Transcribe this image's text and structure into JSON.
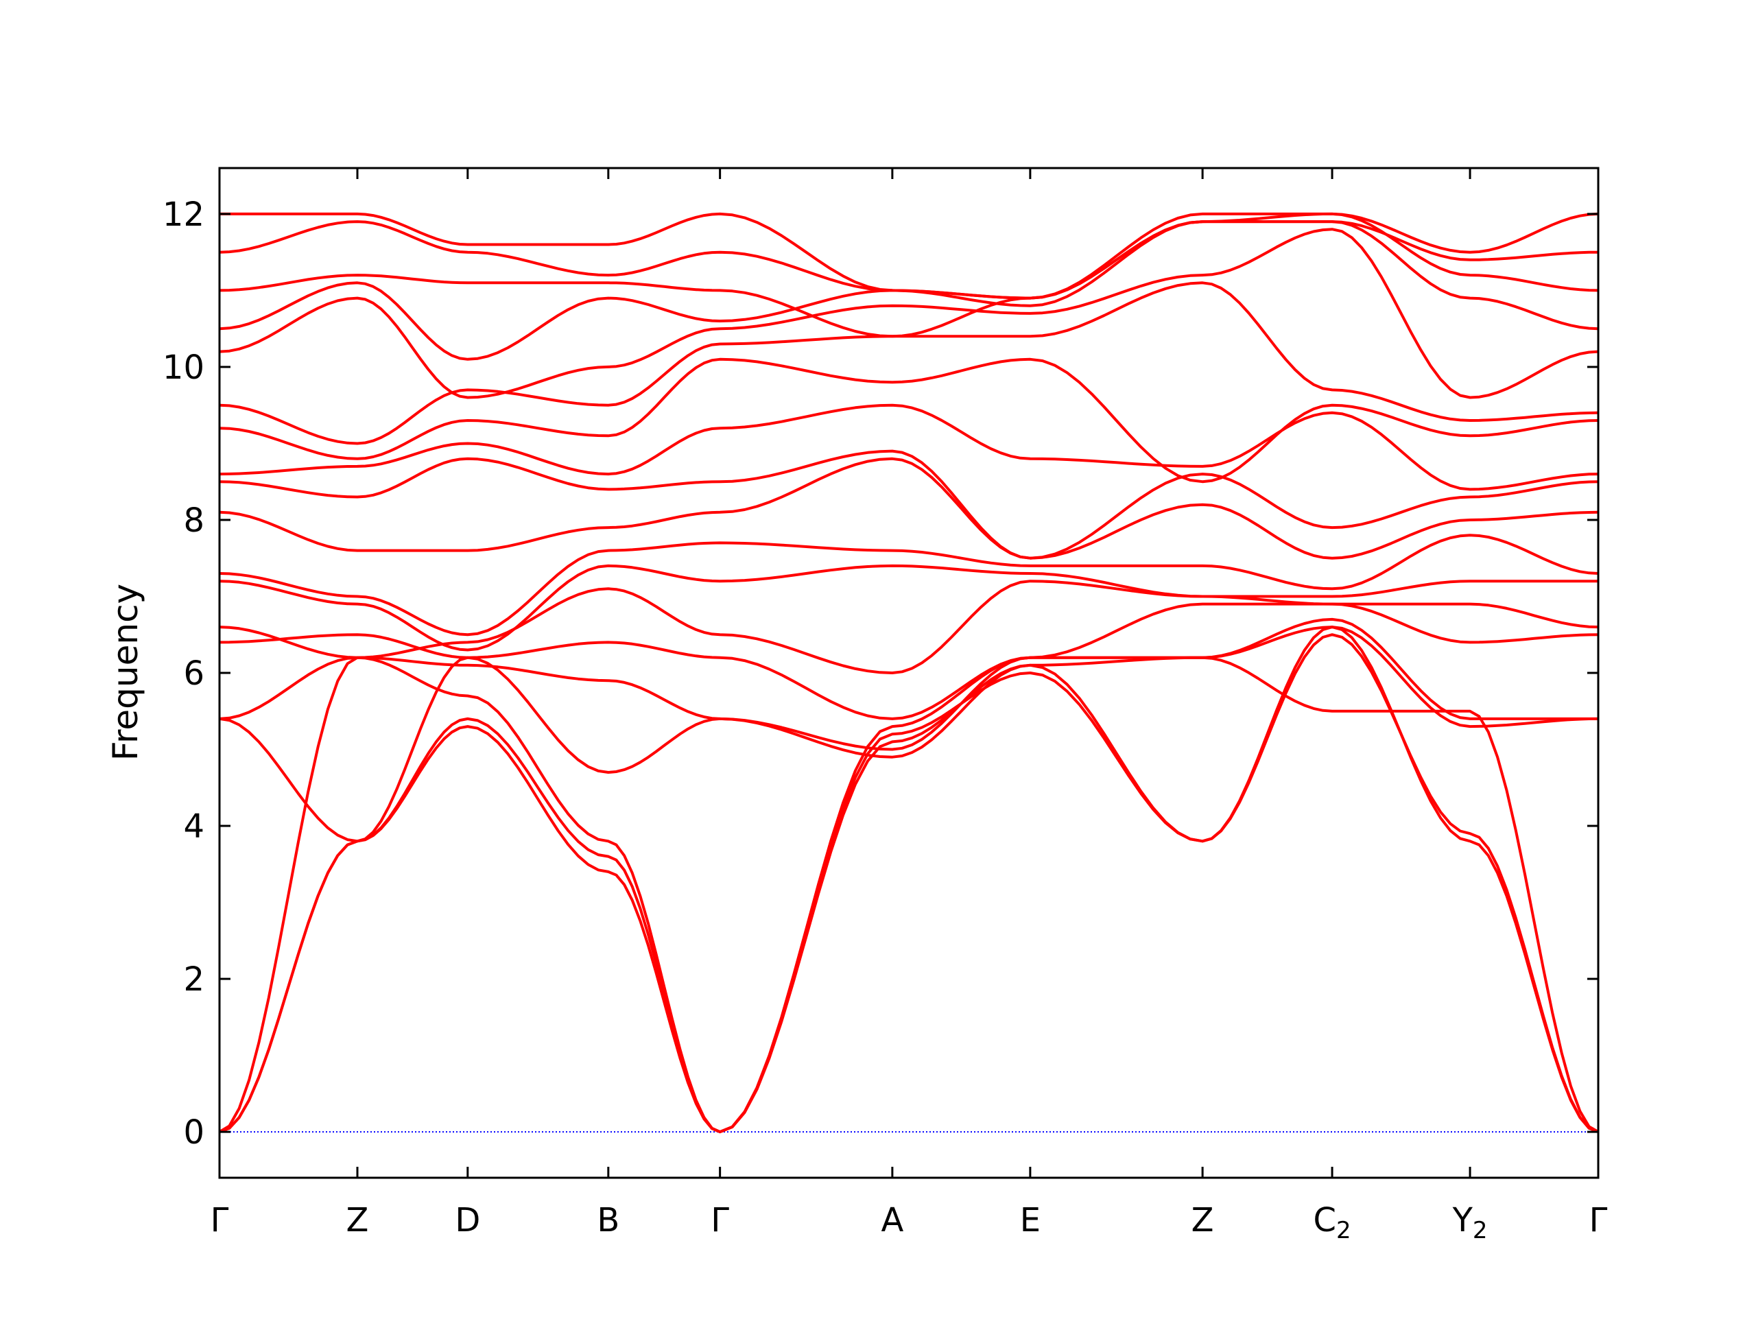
{
  "chart_data": {
    "type": "line",
    "title": "",
    "xlabel": "",
    "ylabel": "Frequency",
    "ylim": [
      -0.6,
      12.6
    ],
    "yticks": [
      0,
      2,
      4,
      6,
      8,
      10,
      12
    ],
    "grid": false,
    "legend": "none",
    "x_range": [
      0,
      10
    ],
    "x_ticks": [
      {
        "pos": 0.0,
        "label": "Γ",
        "sub": ""
      },
      {
        "pos": 1.0,
        "label": "Z",
        "sub": ""
      },
      {
        "pos": 1.8,
        "label": "D",
        "sub": ""
      },
      {
        "pos": 2.82,
        "label": "B",
        "sub": ""
      },
      {
        "pos": 3.63,
        "label": "Γ",
        "sub": ""
      },
      {
        "pos": 4.88,
        "label": "A",
        "sub": ""
      },
      {
        "pos": 5.88,
        "label": "E",
        "sub": ""
      },
      {
        "pos": 7.13,
        "label": "Z",
        "sub": ""
      },
      {
        "pos": 8.07,
        "label": "C",
        "sub": "2"
      },
      {
        "pos": 9.07,
        "label": "Y",
        "sub": "2"
      },
      {
        "pos": 10.0,
        "label": "Γ",
        "sub": ""
      }
    ],
    "line_color": "#ff0000",
    "zero_line_color": "#0000ff",
    "points_per_segment": 14,
    "bands": [
      [
        [
          0,
          0
        ],
        [
          1,
          3.8
        ],
        [
          1.8,
          5.3
        ],
        [
          2.82,
          3.4
        ],
        [
          3.63,
          0
        ],
        [
          4.88,
          5.1
        ],
        [
          5.88,
          6.1
        ],
        [
          7.13,
          3.8
        ],
        [
          8.07,
          6.6
        ],
        [
          9.07,
          3.8
        ],
        [
          10,
          0
        ]
      ],
      [
        [
          0,
          0
        ],
        [
          1,
          3.8
        ],
        [
          1.8,
          5.4
        ],
        [
          2.82,
          3.6
        ],
        [
          3.63,
          0
        ],
        [
          4.88,
          5.2
        ],
        [
          5.88,
          6.0
        ],
        [
          7.13,
          3.8
        ],
        [
          8.07,
          6.5
        ],
        [
          9.07,
          3.9
        ],
        [
          10,
          0
        ]
      ],
      [
        [
          0,
          0
        ],
        [
          1,
          6.2
        ],
        [
          1.8,
          5.7
        ],
        [
          2.82,
          3.8
        ],
        [
          3.63,
          0
        ],
        [
          4.88,
          5.3
        ],
        [
          5.88,
          6.2
        ],
        [
          7.13,
          6.2
        ],
        [
          8.07,
          5.5
        ],
        [
          9.07,
          5.5
        ],
        [
          10,
          0
        ]
      ],
      [
        [
          0,
          5.4
        ],
        [
          1,
          3.8
        ],
        [
          1.8,
          6.2
        ],
        [
          2.82,
          4.7
        ],
        [
          3.63,
          5.4
        ],
        [
          4.88,
          4.9
        ],
        [
          5.88,
          6.1
        ],
        [
          7.13,
          6.2
        ],
        [
          8.07,
          6.6
        ],
        [
          9.07,
          5.3
        ],
        [
          10,
          5.4
        ]
      ],
      [
        [
          0,
          5.4
        ],
        [
          1,
          6.2
        ],
        [
          1.8,
          6.1
        ],
        [
          2.82,
          5.9
        ],
        [
          3.63,
          5.4
        ],
        [
          4.88,
          5.0
        ],
        [
          5.88,
          6.2
        ],
        [
          7.13,
          6.2
        ],
        [
          8.07,
          6.7
        ],
        [
          9.07,
          5.4
        ],
        [
          10,
          5.4
        ]
      ],
      [
        [
          0,
          6.4
        ],
        [
          1,
          6.5
        ],
        [
          1.8,
          6.2
        ],
        [
          2.82,
          6.4
        ],
        [
          3.63,
          6.2
        ],
        [
          4.88,
          5.4
        ],
        [
          5.88,
          6.2
        ],
        [
          7.13,
          6.9
        ],
        [
          8.07,
          6.9
        ],
        [
          9.07,
          6.4
        ],
        [
          10,
          6.5
        ]
      ],
      [
        [
          0,
          6.6
        ],
        [
          1,
          6.2
        ],
        [
          1.8,
          6.4
        ],
        [
          2.82,
          7.1
        ],
        [
          3.63,
          6.5
        ],
        [
          4.88,
          6.0
        ],
        [
          5.88,
          7.2
        ],
        [
          7.13,
          7.0
        ],
        [
          8.07,
          6.9
        ],
        [
          9.07,
          6.9
        ],
        [
          10,
          6.6
        ]
      ],
      [
        [
          0,
          7.2
        ],
        [
          1,
          6.9
        ],
        [
          1.8,
          6.3
        ],
        [
          2.82,
          7.4
        ],
        [
          3.63,
          7.2
        ],
        [
          4.88,
          7.4
        ],
        [
          5.88,
          7.3
        ],
        [
          7.13,
          7.0
        ],
        [
          8.07,
          7.0
        ],
        [
          9.07,
          7.2
        ],
        [
          10,
          7.2
        ]
      ],
      [
        [
          0,
          7.3
        ],
        [
          1,
          7.0
        ],
        [
          1.8,
          6.5
        ],
        [
          2.82,
          7.6
        ],
        [
          3.63,
          7.7
        ],
        [
          4.88,
          7.6
        ],
        [
          5.88,
          7.4
        ],
        [
          7.13,
          7.4
        ],
        [
          8.07,
          7.1
        ],
        [
          9.07,
          7.8
        ],
        [
          10,
          7.3
        ]
      ],
      [
        [
          0,
          8.1
        ],
        [
          1,
          7.6
        ],
        [
          1.8,
          7.6
        ],
        [
          2.82,
          7.9
        ],
        [
          3.63,
          8.1
        ],
        [
          4.88,
          8.8
        ],
        [
          5.88,
          7.5
        ],
        [
          7.13,
          8.2
        ],
        [
          8.07,
          7.5
        ],
        [
          9.07,
          8.0
        ],
        [
          10,
          8.1
        ]
      ],
      [
        [
          0,
          8.5
        ],
        [
          1,
          8.3
        ],
        [
          1.8,
          8.8
        ],
        [
          2.82,
          8.4
        ],
        [
          3.63,
          8.5
        ],
        [
          4.88,
          8.9
        ],
        [
          5.88,
          7.5
        ],
        [
          7.13,
          8.6
        ],
        [
          8.07,
          7.9
        ],
        [
          9.07,
          8.3
        ],
        [
          10,
          8.5
        ]
      ],
      [
        [
          0,
          8.6
        ],
        [
          1,
          8.7
        ],
        [
          1.8,
          9.0
        ],
        [
          2.82,
          8.6
        ],
        [
          3.63,
          9.2
        ],
        [
          4.88,
          9.5
        ],
        [
          5.88,
          8.8
        ],
        [
          7.13,
          8.7
        ],
        [
          8.07,
          9.4
        ],
        [
          9.07,
          8.4
        ],
        [
          10,
          8.6
        ]
      ],
      [
        [
          0,
          9.2
        ],
        [
          1,
          8.8
        ],
        [
          1.8,
          9.3
        ],
        [
          2.82,
          9.1
        ],
        [
          3.63,
          10.1
        ],
        [
          4.88,
          9.8
        ],
        [
          5.88,
          10.1
        ],
        [
          7.13,
          8.5
        ],
        [
          8.07,
          9.5
        ],
        [
          9.07,
          9.1
        ],
        [
          10,
          9.3
        ]
      ],
      [
        [
          0,
          9.5
        ],
        [
          1,
          9.0
        ],
        [
          1.8,
          9.7
        ],
        [
          2.82,
          9.5
        ],
        [
          3.63,
          10.3
        ],
        [
          4.88,
          10.4
        ],
        [
          5.88,
          10.4
        ],
        [
          7.13,
          11.1
        ],
        [
          8.07,
          9.7
        ],
        [
          9.07,
          9.3
        ],
        [
          10,
          9.4
        ]
      ],
      [
        [
          0,
          10.2
        ],
        [
          1,
          10.9
        ],
        [
          1.8,
          9.6
        ],
        [
          2.82,
          10.0
        ],
        [
          3.63,
          10.5
        ],
        [
          4.88,
          10.8
        ],
        [
          5.88,
          10.7
        ],
        [
          7.13,
          11.2
        ],
        [
          8.07,
          11.8
        ],
        [
          9.07,
          9.6
        ],
        [
          10,
          10.2
        ]
      ],
      [
        [
          0,
          10.5
        ],
        [
          1,
          11.1
        ],
        [
          1.8,
          10.1
        ],
        [
          2.82,
          10.9
        ],
        [
          3.63,
          10.6
        ],
        [
          4.88,
          11.0
        ],
        [
          5.88,
          10.8
        ],
        [
          7.13,
          11.9
        ],
        [
          8.07,
          11.9
        ],
        [
          9.07,
          10.9
        ],
        [
          10,
          10.5
        ]
      ],
      [
        [
          0,
          11.0
        ],
        [
          1,
          11.2
        ],
        [
          1.8,
          11.1
        ],
        [
          2.82,
          11.1
        ],
        [
          3.63,
          11.0
        ],
        [
          4.88,
          10.4
        ],
        [
          5.88,
          10.9
        ],
        [
          7.13,
          11.9
        ],
        [
          8.07,
          12.0
        ],
        [
          9.07,
          11.2
        ],
        [
          10,
          11.0
        ]
      ],
      [
        [
          0,
          11.5
        ],
        [
          1,
          11.9
        ],
        [
          1.8,
          11.5
        ],
        [
          2.82,
          11.2
        ],
        [
          3.63,
          11.5
        ],
        [
          4.88,
          11.0
        ],
        [
          5.88,
          10.9
        ],
        [
          7.13,
          11.9
        ],
        [
          8.07,
          11.9
        ],
        [
          9.07,
          11.4
        ],
        [
          10,
          11.5
        ]
      ],
      [
        [
          0,
          12.0
        ],
        [
          1,
          12.0
        ],
        [
          1.8,
          11.6
        ],
        [
          2.82,
          11.6
        ],
        [
          3.63,
          12.0
        ],
        [
          4.88,
          11.0
        ],
        [
          5.88,
          10.9
        ],
        [
          7.13,
          12.0
        ],
        [
          8.07,
          12.0
        ],
        [
          9.07,
          11.5
        ],
        [
          10,
          12.0
        ]
      ]
    ]
  }
}
